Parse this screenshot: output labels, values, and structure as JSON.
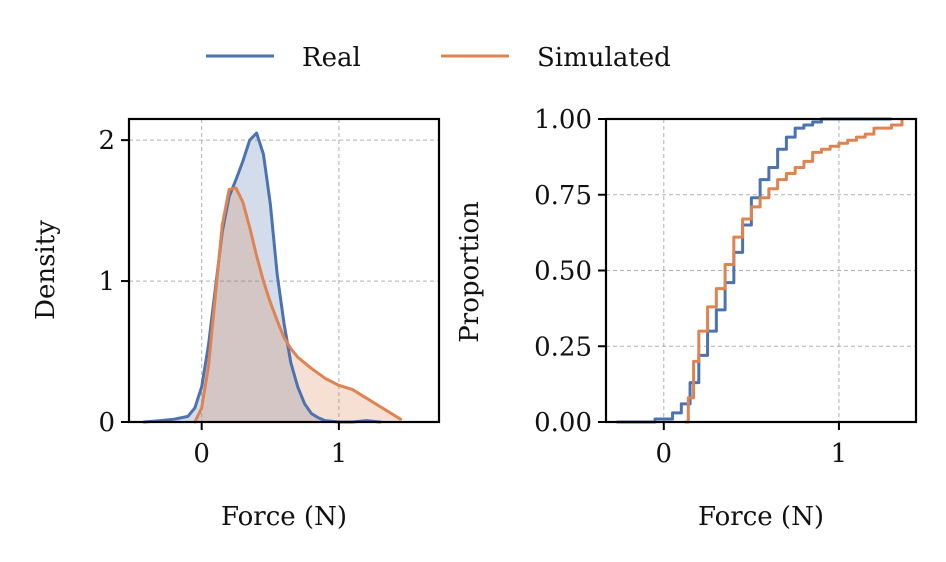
{
  "legend": {
    "entries": [
      {
        "label": "Real",
        "color": "#4c72b0"
      },
      {
        "label": "Simulated",
        "color": "#dd8452"
      }
    ],
    "placement": "top-center"
  },
  "chart_data": [
    {
      "type": "area",
      "title": "",
      "xlabel": "Force (N)",
      "ylabel": "Density",
      "xlim": [
        -0.53,
        1.73
      ],
      "ylim": [
        0,
        2.15
      ],
      "xticks": [
        0,
        1
      ],
      "xtick_labels": [
        "0",
        "1"
      ],
      "yticks": [
        0,
        1,
        2
      ],
      "ytick_labels": [
        "0",
        "1",
        "2"
      ],
      "grid": true,
      "series": [
        {
          "name": "Real",
          "color": "#4c72b0",
          "x": [
            -0.42,
            -0.3,
            -0.2,
            -0.1,
            -0.05,
            0.0,
            0.05,
            0.1,
            0.15,
            0.2,
            0.25,
            0.3,
            0.35,
            0.4,
            0.45,
            0.5,
            0.55,
            0.6,
            0.65,
            0.7,
            0.75,
            0.8,
            0.85,
            0.9,
            1.0,
            1.1,
            1.2,
            1.3
          ],
          "y": [
            0.0,
            0.01,
            0.02,
            0.04,
            0.1,
            0.25,
            0.55,
            0.95,
            1.35,
            1.6,
            1.72,
            1.85,
            2.0,
            2.05,
            1.9,
            1.55,
            1.05,
            0.7,
            0.42,
            0.25,
            0.13,
            0.06,
            0.03,
            0.01,
            0.0,
            0.0,
            0.01,
            0.0
          ]
        },
        {
          "name": "Simulated",
          "color": "#dd8452",
          "x": [
            -0.05,
            0.0,
            0.05,
            0.1,
            0.15,
            0.2,
            0.25,
            0.3,
            0.35,
            0.4,
            0.45,
            0.5,
            0.55,
            0.6,
            0.65,
            0.7,
            0.8,
            0.9,
            1.0,
            1.1,
            1.2,
            1.3,
            1.4,
            1.45
          ],
          "y": [
            0.0,
            0.1,
            0.4,
            0.9,
            1.4,
            1.65,
            1.66,
            1.56,
            1.38,
            1.18,
            1.0,
            0.85,
            0.72,
            0.6,
            0.52,
            0.46,
            0.38,
            0.31,
            0.26,
            0.23,
            0.17,
            0.11,
            0.05,
            0.02
          ]
        }
      ]
    },
    {
      "type": "line",
      "subtype": "ecdf",
      "title": "",
      "xlabel": "Force (N)",
      "ylabel": "Proportion",
      "xlim": [
        -0.33,
        1.44
      ],
      "ylim": [
        0,
        1
      ],
      "xticks": [
        0,
        1
      ],
      "xtick_labels": [
        "0",
        "1"
      ],
      "yticks": [
        0,
        0.25,
        0.5,
        0.75,
        1.0
      ],
      "ytick_labels": [
        "0.00",
        "0.25",
        "0.50",
        "0.75",
        "1.00"
      ],
      "grid": true,
      "series": [
        {
          "name": "Real",
          "color": "#4c72b0",
          "x": [
            -0.27,
            -0.05,
            0.05,
            0.1,
            0.15,
            0.2,
            0.25,
            0.3,
            0.35,
            0.4,
            0.45,
            0.5,
            0.55,
            0.6,
            0.65,
            0.7,
            0.75,
            0.8,
            0.85,
            0.9,
            1.0,
            1.1,
            1.2,
            1.3
          ],
          "y": [
            0.0,
            0.01,
            0.03,
            0.06,
            0.13,
            0.22,
            0.3,
            0.37,
            0.46,
            0.56,
            0.65,
            0.74,
            0.8,
            0.84,
            0.9,
            0.94,
            0.97,
            0.98,
            0.99,
            1.0,
            1.0,
            1.0,
            1.0,
            1.0
          ]
        },
        {
          "name": "Simulated",
          "color": "#dd8452",
          "x": [
            0.12,
            0.14,
            0.17,
            0.2,
            0.25,
            0.3,
            0.35,
            0.4,
            0.45,
            0.5,
            0.55,
            0.6,
            0.65,
            0.7,
            0.75,
            0.8,
            0.85,
            0.9,
            0.95,
            1.0,
            1.05,
            1.1,
            1.15,
            1.2,
            1.3,
            1.36
          ],
          "y": [
            0.0,
            0.08,
            0.2,
            0.3,
            0.38,
            0.44,
            0.52,
            0.61,
            0.67,
            0.71,
            0.74,
            0.77,
            0.8,
            0.82,
            0.84,
            0.86,
            0.89,
            0.9,
            0.91,
            0.92,
            0.93,
            0.94,
            0.95,
            0.97,
            0.98,
            1.0
          ]
        }
      ]
    }
  ]
}
